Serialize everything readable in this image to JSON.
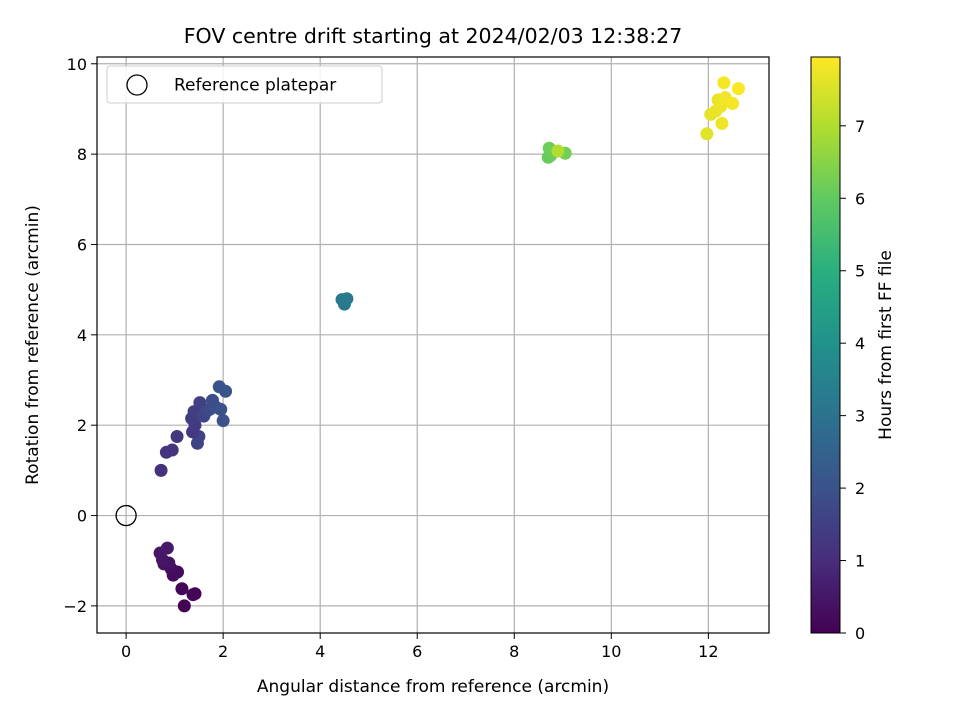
{
  "chart_data": {
    "type": "scatter",
    "title": "FOV centre drift starting at 2024/02/03 12:38:27",
    "xlabel": "Angular distance from reference (arcmin)",
    "ylabel": "Rotation from reference (arcmin)",
    "xlim": [
      -0.6,
      13.25
    ],
    "ylim": [
      -2.6,
      10.15
    ],
    "xticks": [
      0,
      2,
      4,
      6,
      8,
      10,
      12
    ],
    "yticks": [
      -2,
      0,
      2,
      4,
      6,
      8,
      10
    ],
    "grid": true,
    "legend": {
      "position": "top-left",
      "entries": [
        "Reference platepar"
      ]
    },
    "reference": {
      "x": 0,
      "y": 0,
      "label": "Reference platepar"
    },
    "colorbar": {
      "label": "Hours from first FF file",
      "range": [
        0,
        7.95
      ],
      "ticks": [
        0,
        1,
        2,
        3,
        4,
        5,
        6,
        7
      ],
      "colormap": "viridis"
    },
    "points": [
      {
        "x": 1.2,
        "y": -2.0,
        "c": 0.02
      },
      {
        "x": 1.38,
        "y": -1.75,
        "c": 0.05
      },
      {
        "x": 1.42,
        "y": -1.73,
        "c": 0.08
      },
      {
        "x": 1.15,
        "y": -1.62,
        "c": 0.12
      },
      {
        "x": 0.97,
        "y": -1.32,
        "c": 0.2
      },
      {
        "x": 1.06,
        "y": -1.25,
        "c": 0.25
      },
      {
        "x": 0.93,
        "y": -1.18,
        "c": 0.3
      },
      {
        "x": 0.78,
        "y": -1.07,
        "c": 0.35
      },
      {
        "x": 0.88,
        "y": -1.05,
        "c": 0.4
      },
      {
        "x": 0.75,
        "y": -0.98,
        "c": 0.45
      },
      {
        "x": 0.7,
        "y": -0.83,
        "c": 0.5
      },
      {
        "x": 0.85,
        "y": -0.72,
        "c": 0.55
      },
      {
        "x": 0.72,
        "y": 1.0,
        "c": 1.1
      },
      {
        "x": 0.83,
        "y": 1.4,
        "c": 1.15
      },
      {
        "x": 0.95,
        "y": 1.45,
        "c": 1.2
      },
      {
        "x": 1.05,
        "y": 1.75,
        "c": 1.25
      },
      {
        "x": 1.47,
        "y": 1.6,
        "c": 1.55
      },
      {
        "x": 1.5,
        "y": 1.75,
        "c": 1.6
      },
      {
        "x": 1.37,
        "y": 1.85,
        "c": 1.3
      },
      {
        "x": 1.42,
        "y": 2.0,
        "c": 1.35
      },
      {
        "x": 1.35,
        "y": 2.15,
        "c": 1.4
      },
      {
        "x": 1.4,
        "y": 2.3,
        "c": 1.45
      },
      {
        "x": 1.52,
        "y": 2.5,
        "c": 1.5
      },
      {
        "x": 1.6,
        "y": 2.2,
        "c": 1.65
      },
      {
        "x": 1.65,
        "y": 2.3,
        "c": 1.7
      },
      {
        "x": 1.72,
        "y": 2.35,
        "c": 1.8
      },
      {
        "x": 1.78,
        "y": 2.55,
        "c": 1.85
      },
      {
        "x": 1.85,
        "y": 2.4,
        "c": 1.9
      },
      {
        "x": 1.95,
        "y": 2.35,
        "c": 1.95
      },
      {
        "x": 2.0,
        "y": 2.1,
        "c": 2.0
      },
      {
        "x": 1.92,
        "y": 2.85,
        "c": 2.05
      },
      {
        "x": 2.05,
        "y": 2.75,
        "c": 2.1
      },
      {
        "x": 4.45,
        "y": 4.78,
        "c": 3.2
      },
      {
        "x": 4.5,
        "y": 4.68,
        "c": 3.22
      },
      {
        "x": 4.55,
        "y": 4.8,
        "c": 3.25
      },
      {
        "x": 8.7,
        "y": 7.93,
        "c": 6.05
      },
      {
        "x": 8.75,
        "y": 7.97,
        "c": 6.1
      },
      {
        "x": 8.72,
        "y": 8.13,
        "c": 6.15
      },
      {
        "x": 9.05,
        "y": 8.02,
        "c": 6.2
      },
      {
        "x": 8.9,
        "y": 8.07,
        "c": 7.0
      },
      {
        "x": 11.97,
        "y": 8.45,
        "c": 7.6
      },
      {
        "x": 12.05,
        "y": 8.88,
        "c": 7.65
      },
      {
        "x": 12.15,
        "y": 8.95,
        "c": 7.7
      },
      {
        "x": 12.2,
        "y": 9.2,
        "c": 7.72
      },
      {
        "x": 12.25,
        "y": 9.05,
        "c": 7.75
      },
      {
        "x": 12.28,
        "y": 8.68,
        "c": 7.78
      },
      {
        "x": 12.35,
        "y": 9.25,
        "c": 7.8
      },
      {
        "x": 12.5,
        "y": 9.12,
        "c": 7.85
      },
      {
        "x": 12.32,
        "y": 9.58,
        "c": 7.88
      },
      {
        "x": 12.62,
        "y": 9.45,
        "c": 7.95
      }
    ]
  }
}
